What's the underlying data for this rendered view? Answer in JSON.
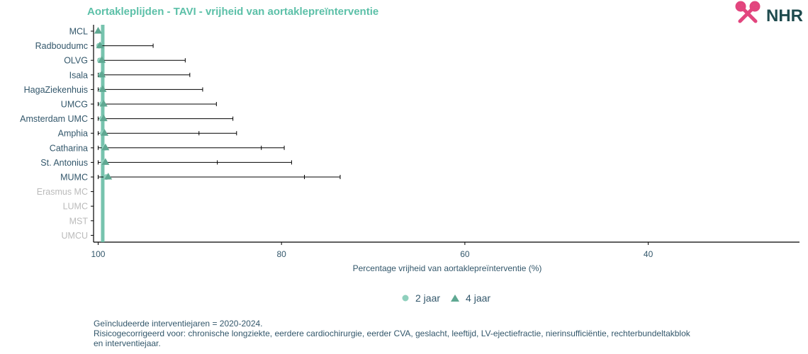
{
  "chart_data": {
    "type": "scatter",
    "title": "Aortakleplijden - TAVI - vrijheid van aortaklepreïnterventie",
    "xlabel": "Percentage vrijheid van aortaklepreïnterventie (%)",
    "ylabel": "",
    "x_reversed": true,
    "xlim": [
      100.5,
      23.5
    ],
    "xticks": [
      100,
      80,
      60,
      40
    ],
    "reference_line": 99.5,
    "grid": false,
    "legend_position": "bottom",
    "categories": [
      "MCL",
      "Radboudumc",
      "OLVG",
      "Isala",
      "HagaZiekenhuis",
      "UMCG",
      "Amsterdam UMC",
      "Amphia",
      "Catharina",
      "St. Antonius",
      "MUMC",
      "Erasmus MC",
      "LUMC",
      "MST",
      "UMCU"
    ],
    "greyed_categories": [
      "Erasmus MC",
      "LUMC",
      "MST",
      "UMCU"
    ],
    "series": [
      {
        "name": "2 jaar",
        "marker": "circle",
        "values": [
          null,
          99.9,
          99.8,
          99.7,
          99.6,
          99.6,
          99.6,
          99.5,
          99.3,
          99.4,
          99.1,
          null,
          null,
          null,
          null
        ],
        "ci_low": [
          null,
          null,
          null,
          null,
          null,
          null,
          null,
          89.0,
          82.2,
          87.0,
          77.5,
          null,
          null,
          null,
          null
        ],
        "ci_high": [
          null,
          null,
          null,
          null,
          null,
          null,
          null,
          null,
          null,
          null,
          null,
          null,
          null,
          null,
          null
        ]
      },
      {
        "name": "4 jaar",
        "marker": "triangle",
        "values": [
          100,
          99.8,
          99.6,
          99.6,
          99.5,
          99.4,
          99.4,
          99.3,
          99.2,
          99.2,
          98.9,
          null,
          null,
          null,
          null
        ],
        "ci_low": [
          null,
          94.0,
          90.5,
          90.0,
          88.6,
          87.1,
          85.3,
          84.9,
          79.7,
          78.9,
          73.6,
          null,
          null,
          null,
          null
        ],
        "ci_high": [
          null,
          100,
          100,
          100,
          100,
          100,
          100,
          100,
          100,
          100,
          100,
          null,
          null,
          null,
          null
        ]
      }
    ]
  },
  "legend": {
    "item_2jaar": "2 jaar",
    "item_4jaar": "4 jaar"
  },
  "footnotes": {
    "line1": "Geïncludeerde interventiejaren = 2020-2024.",
    "line2": "Risicogecorrigeerd voor: chronische longziekte, eerdere cardiochirurgie, eerder CVA, geslacht, leeftijd, LV-ejectiefractie, nierinsufficiëntie, rechterbundeltakblok",
    "line3": "en interventiejaar."
  },
  "logo": {
    "text": "NHR"
  },
  "colors": {
    "title": "#5cc0a8",
    "text": "#33576b",
    "grey_label": "#bbbbbb",
    "marker_2jaar": "#8fd0bd",
    "marker_4jaar": "#5fa892",
    "reference_line": "#5fb8a0",
    "logo_pink": "#e2457e",
    "logo_dark": "#1f4b4e"
  }
}
